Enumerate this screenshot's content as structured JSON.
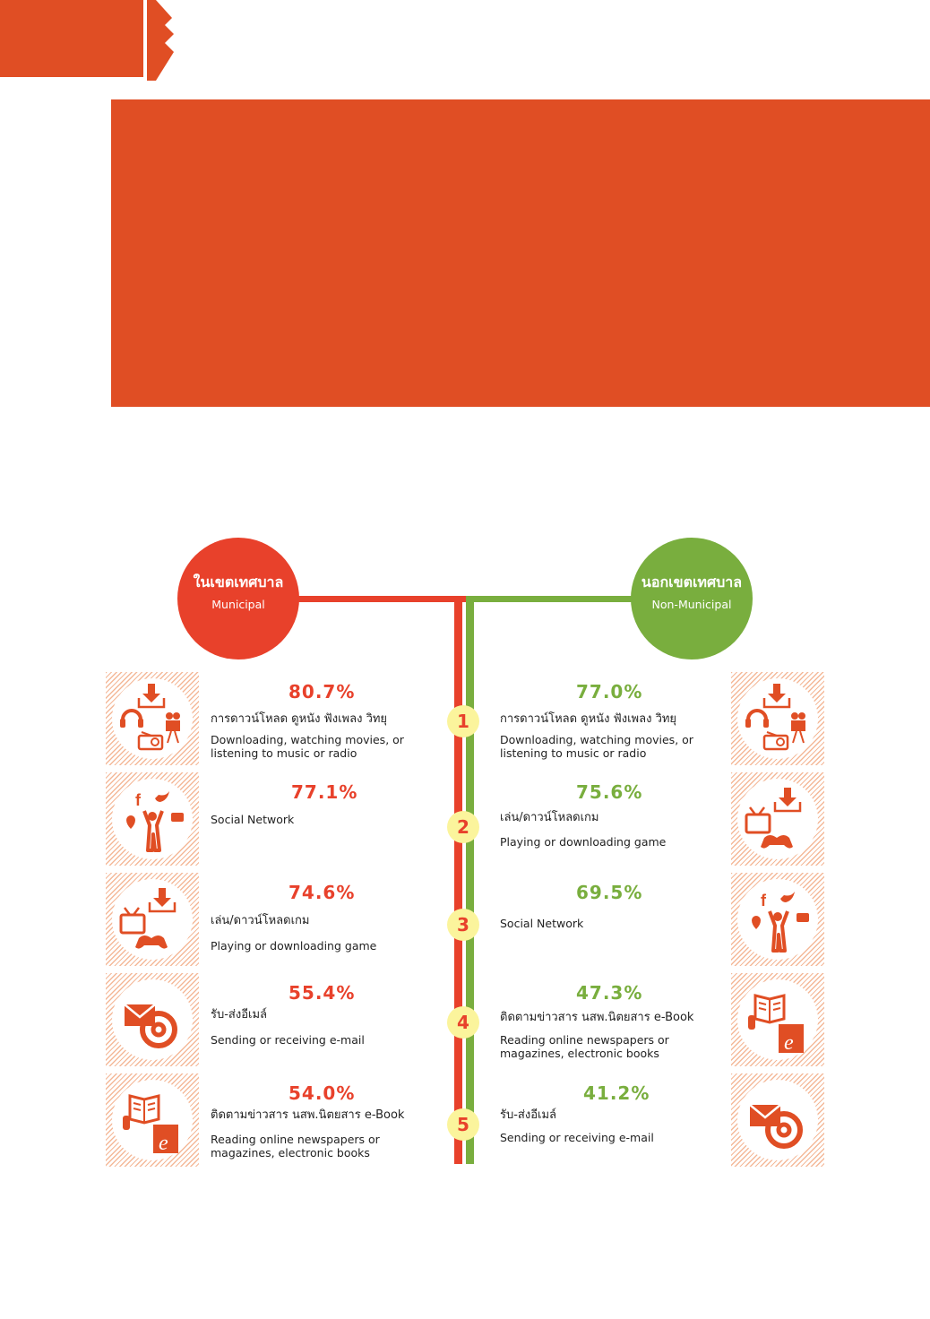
{
  "colors": {
    "accent": "#e04e24",
    "municipal": "#e8412b",
    "non_municipal": "#79ae3e",
    "rank_badge": "#fbf49c",
    "icon_color": "#e04e24"
  },
  "municipal": {
    "title_th": "ในเขตเทศบาล",
    "title_en": "Municipal",
    "items": [
      {
        "percent": "80.7%",
        "label_th": "การดาวน์โหลด ดูหนัง ฟังเพลง วิทยุ",
        "label_en_1": "Downloading, watching movies, or",
        "label_en_2": "listening to music or radio",
        "icon": "media-download-icon"
      },
      {
        "percent": "77.1%",
        "label_th": "",
        "label_en_1": "Social Network",
        "label_en_2": "",
        "icon": "social-network-icon"
      },
      {
        "percent": "74.6%",
        "label_th": "เล่น/ดาวน์โหลดเกม",
        "label_en_1": "Playing or downloading game",
        "label_en_2": "",
        "icon": "game-download-icon"
      },
      {
        "percent": "55.4%",
        "label_th": "รับ-ส่งอีเมล์",
        "label_en_1": "Sending or receiving e-mail",
        "label_en_2": "",
        "icon": "email-icon"
      },
      {
        "percent": "54.0%",
        "label_th": "ติดตามข่าวสาร นสพ.นิตยสาร e-Book",
        "label_en_1": "Reading online newspapers or",
        "label_en_2": "magazines, electronic books",
        "icon": "ebook-icon"
      }
    ]
  },
  "non_municipal": {
    "title_th": "นอกเขตเทศบาล",
    "title_en": "Non-Municipal",
    "items": [
      {
        "percent": "77.0%",
        "label_th": "การดาวน์โหลด ดูหนัง ฟังเพลง วิทยุ",
        "label_en_1": "Downloading, watching movies, or",
        "label_en_2": "listening to music or radio",
        "icon": "media-download-icon"
      },
      {
        "percent": "75.6%",
        "label_th": "เล่น/ดาวน์โหลดเกม",
        "label_en_1": "Playing or downloading game",
        "label_en_2": "",
        "icon": "game-download-icon"
      },
      {
        "percent": "69.5%",
        "label_th": "",
        "label_en_1": "Social Network",
        "label_en_2": "",
        "icon": "social-network-icon"
      },
      {
        "percent": "47.3%",
        "label_th": "ติดตามข่าวสาร นสพ.นิตยสาร e-Book",
        "label_en_1": "Reading online newspapers or",
        "label_en_2": "magazines, electronic books",
        "icon": "ebook-icon"
      },
      {
        "percent": "41.2%",
        "label_th": "รับ-ส่งอีเมล์",
        "label_en_1": "Sending or receiving e-mail",
        "label_en_2": "",
        "icon": "email-icon"
      }
    ]
  },
  "ranks": [
    "1",
    "2",
    "3",
    "4",
    "5"
  ]
}
